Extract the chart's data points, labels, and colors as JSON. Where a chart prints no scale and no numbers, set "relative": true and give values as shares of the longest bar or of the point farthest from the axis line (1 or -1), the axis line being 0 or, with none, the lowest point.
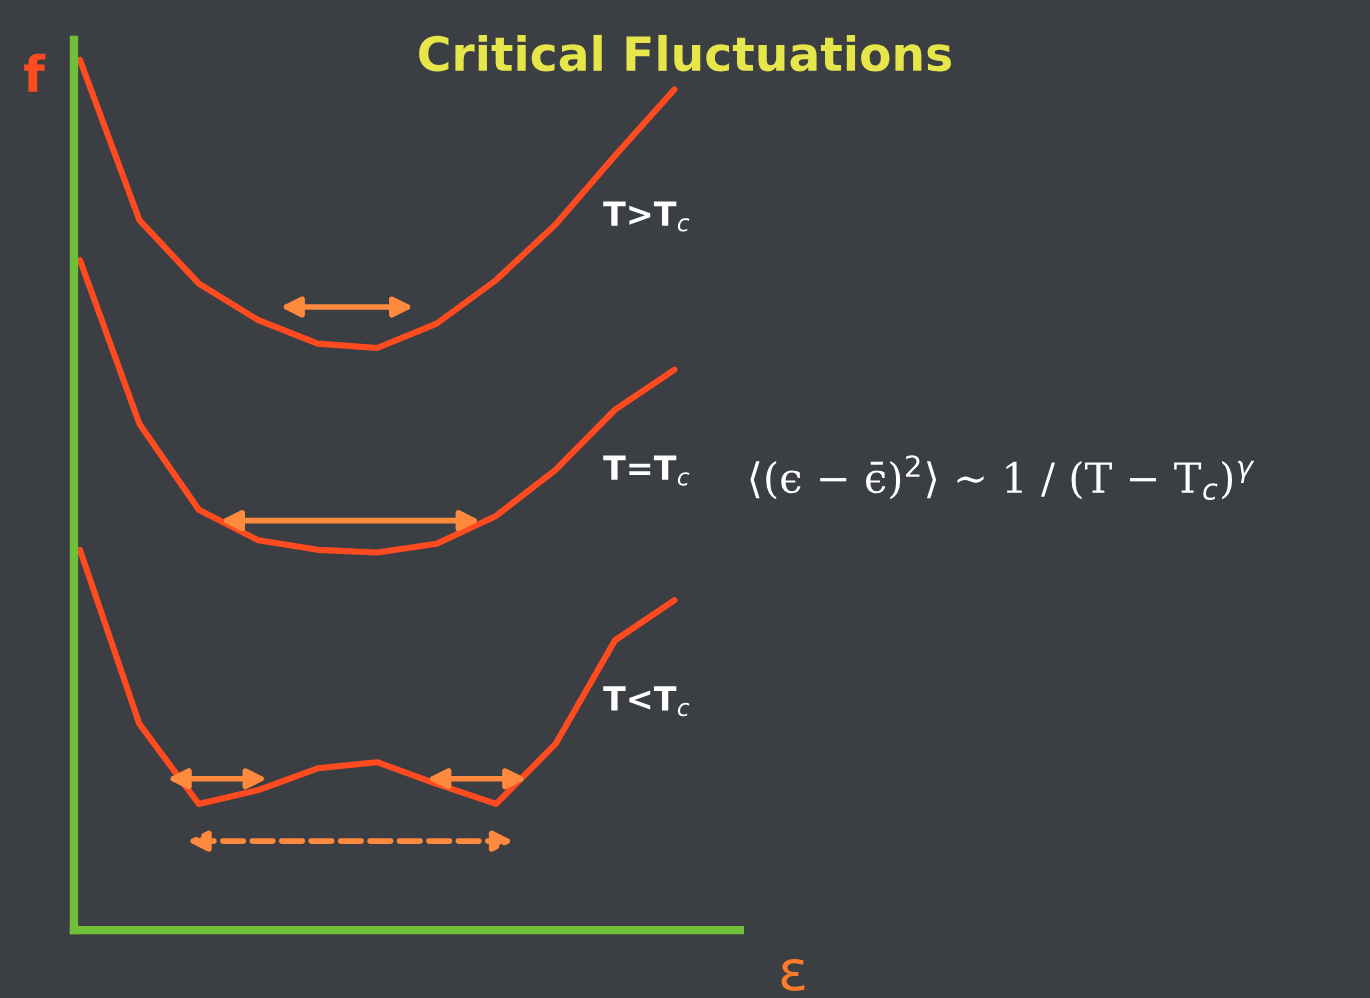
{
  "chart_data": {
    "type": "line",
    "title": "Critical Fluctuations",
    "xlabel": "ε",
    "ylabel": "f",
    "relative": true,
    "categories": [
      null,
      null,
      null,
      null,
      null,
      null,
      null,
      null,
      null,
      null,
      null
    ],
    "series": [
      {
        "name": "T>T$_{c}$",
        "color": "#ff4b1f",
        "values": [
          1.0,
          0.816,
          0.743,
          0.701,
          0.674,
          0.669,
          0.697,
          0.747,
          0.811,
          0.89,
          0.966
        ]
      },
      {
        "name": "T=T$_{c}$",
        "color": "#ff4b1f",
        "values": [
          0.77,
          0.582,
          0.483,
          0.448,
          0.437,
          0.434,
          0.444,
          0.476,
          0.529,
          0.598,
          0.644
        ]
      },
      {
        "name": "T<T$_{c}$",
        "color": "#ff4b1f",
        "values": [
          0.437,
          0.237,
          0.145,
          0.161,
          0.186,
          0.193,
          0.168,
          0.145,
          0.214,
          0.333,
          0.379
        ]
      }
    ],
    "annotations": [
      "⟨(ϵ − ϵ̄)$^{2}$⟩ ∼ 1 / (T − T$_{c}$)$^{γ}$"
    ],
    "legend": false,
    "grid": false,
    "marker": "none",
    "line_style": "solid"
  }
}
